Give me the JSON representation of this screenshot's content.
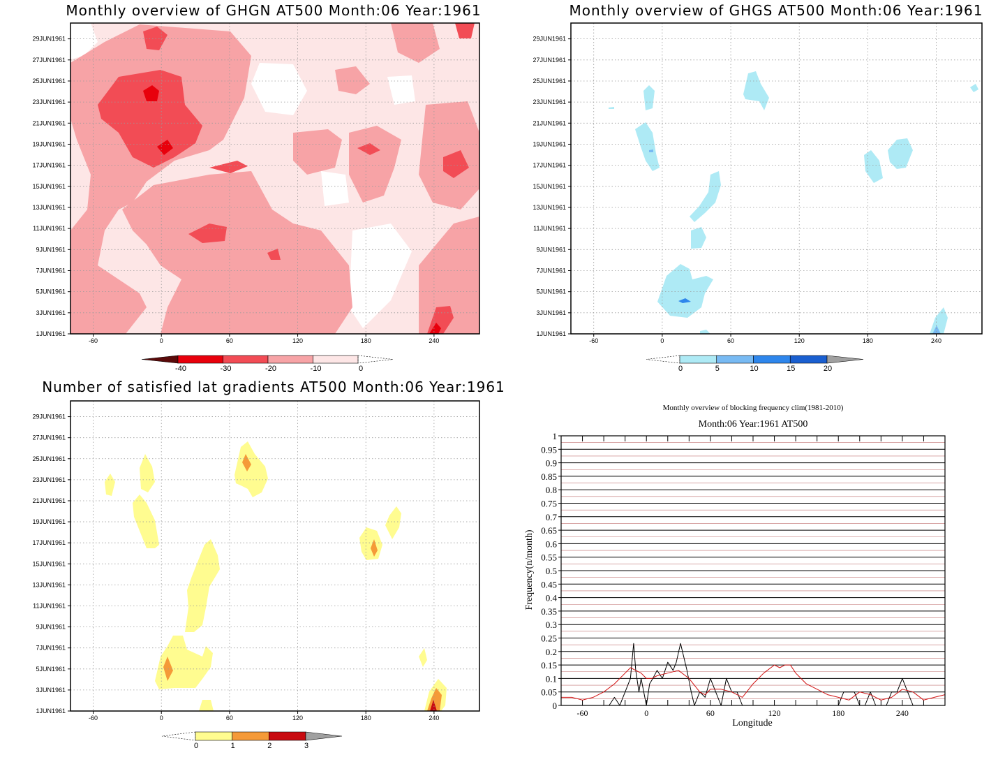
{
  "chart_data": [
    {
      "type": "heatmap",
      "title": "Monthly overview of GHGN AT500 Month:06 Year:1961",
      "x_ticks": [
        "-60",
        "0",
        "60",
        "120",
        "180",
        "240"
      ],
      "x_tick_values": [
        -60,
        0,
        60,
        120,
        180,
        240
      ],
      "xlim": [
        -80,
        280
      ],
      "y_ticks": [
        "1JUN1961",
        "3JUN1961",
        "5JUN1961",
        "7JUN1961",
        "9JUN1961",
        "11JUN1961",
        "13JUN1961",
        "15JUN1961",
        "17JUN1961",
        "19JUN1961",
        "21JUN1961",
        "23JUN1961",
        "25JUN1961",
        "27JUN1961",
        "29JUN1961"
      ],
      "grid": true,
      "colorbar": {
        "labels": [
          "-40",
          "-30",
          "-20",
          "-10",
          "0"
        ],
        "colors": [
          "#5a0a0a",
          "#e8000c",
          "#f24c55",
          "#f7a3a6",
          "#fde6e6"
        ],
        "extend": "both"
      },
      "regions": [
        {
          "level": "-20..-10",
          "color": "#f7a3a6",
          "center": [
            -30,
            17
          ],
          "extent": [
            60,
            8
          ]
        },
        {
          "level": "-30..-20",
          "color": "#f24c55",
          "center": [
            5,
            21
          ],
          "extent": [
            45,
            5
          ]
        },
        {
          "level": "-40..-30",
          "color": "#e8000c",
          "center": [
            -7,
            23
          ],
          "extent": [
            5,
            1
          ]
        },
        {
          "level": "-40..-30",
          "color": "#e8000c",
          "center": [
            0,
            18.5
          ],
          "extent": [
            8,
            1
          ]
        }
      ]
    },
    {
      "type": "heatmap",
      "title": "Monthly overview of GHGS AT500 Month:06 Year:1961",
      "x_ticks": [
        "-60",
        "0",
        "60",
        "120",
        "180",
        "240"
      ],
      "x_tick_values": [
        -60,
        0,
        60,
        120,
        180,
        240
      ],
      "xlim": [
        -80,
        280
      ],
      "y_ticks": [
        "1JUN1961",
        "3JUN1961",
        "5JUN1961",
        "7JUN1961",
        "9JUN1961",
        "11JUN1961",
        "13JUN1961",
        "15JUN1961",
        "17JUN1961",
        "19JUN1961",
        "21JUN1961",
        "23JUN1961",
        "25JUN1961",
        "27JUN1961",
        "29JUN1961"
      ],
      "grid": true,
      "colorbar": {
        "labels": [
          "0",
          "5",
          "10",
          "15",
          "20"
        ],
        "colors": [
          "#aeeaf5",
          "#78baf3",
          "#2e86ec",
          "#1a5fd0",
          "#a0a0a0"
        ],
        "extend": "both"
      },
      "regions": [
        {
          "level": "0..5",
          "color": "#aeeaf5",
          "center": [
            20,
            4.5
          ],
          "extent": [
            35,
            2
          ]
        },
        {
          "level": "0..5",
          "color": "#aeeaf5",
          "center": [
            40,
            13.5
          ],
          "extent": [
            10,
            2
          ]
        },
        {
          "level": "0..5",
          "color": "#aeeaf5",
          "center": [
            -12,
            19
          ],
          "extent": [
            8,
            2
          ]
        },
        {
          "level": "0..5",
          "color": "#aeeaf5",
          "center": [
            85,
            23.5
          ],
          "extent": [
            10,
            1.5
          ]
        },
        {
          "level": "0..5",
          "color": "#aeeaf5",
          "center": [
            200,
            17.5
          ],
          "extent": [
            25,
            1.5
          ]
        }
      ]
    },
    {
      "type": "heatmap",
      "title": "Number of satisfied lat gradients AT500 Month:06 Year:1961",
      "x_ticks": [
        "-60",
        "0",
        "60",
        "120",
        "180",
        "240"
      ],
      "x_tick_values": [
        -60,
        0,
        60,
        120,
        180,
        240
      ],
      "xlim": [
        -80,
        280
      ],
      "y_ticks": [
        "1JUN1961",
        "3JUN1961",
        "5JUN1961",
        "7JUN1961",
        "9JUN1961",
        "11JUN1961",
        "13JUN1961",
        "15JUN1961",
        "17JUN1961",
        "19JUN1961",
        "21JUN1961",
        "23JUN1961",
        "25JUN1961",
        "27JUN1961",
        "29JUN1961"
      ],
      "grid": true,
      "colorbar": {
        "labels": [
          "0",
          "1",
          "2",
          "3"
        ],
        "colors": [
          "#fffc90",
          "#f59a38",
          "#c80a10",
          "#a0a0a0"
        ],
        "extend": "both"
      },
      "regions": [
        {
          "level": "0..1",
          "color": "#fffc90",
          "center": [
            20,
            5
          ],
          "extent": [
            20,
            2
          ]
        },
        {
          "level": "0..1",
          "color": "#fffc90",
          "center": [
            40,
            13
          ],
          "extent": [
            12,
            3
          ]
        },
        {
          "level": "0..1",
          "color": "#fffc90",
          "center": [
            -12,
            20
          ],
          "extent": [
            10,
            3
          ]
        },
        {
          "level": "0..1",
          "color": "#fffc90",
          "center": [
            78,
            24
          ],
          "extent": [
            12,
            2
          ]
        },
        {
          "level": "0..1",
          "color": "#fffc90",
          "center": [
            195,
            17.5
          ],
          "extent": [
            15,
            2
          ]
        },
        {
          "level": "1..2",
          "color": "#f59a38",
          "center": [
            8,
            5
          ],
          "extent": [
            4,
            1
          ]
        },
        {
          "level": "1..2",
          "color": "#f59a38",
          "center": [
            76,
            25
          ],
          "extent": [
            3,
            0.6
          ]
        },
        {
          "level": "2..3",
          "color": "#c80a10",
          "center": [
            240,
            1.3
          ],
          "extent": [
            3,
            0.5
          ]
        }
      ]
    },
    {
      "type": "line",
      "title": "Monthly overview of blocking frequency clim(1981-2010)",
      "subtitle": "Month:06 Year:1961  AT500",
      "xlabel": "Longitude",
      "ylabel": "Frequency(n/month)",
      "x_ticks": [
        "-60",
        "0",
        "60",
        "120",
        "180",
        "240"
      ],
      "x_tick_values": [
        -60,
        0,
        60,
        120,
        180,
        240
      ],
      "xlim": [
        -80,
        280
      ],
      "ylim": [
        0,
        1
      ],
      "y_ticks": [
        "0",
        "0.05",
        "0.1",
        "0.15",
        "0.2",
        "0.25",
        "0.3",
        "0.35",
        "0.4",
        "0.45",
        "0.5",
        "0.55",
        "0.6",
        "0.65",
        "0.7",
        "0.75",
        "0.8",
        "0.85",
        "0.9",
        "0.95",
        "1"
      ],
      "grid": true,
      "series": [
        {
          "color": "#000000",
          "x": [
            -80,
            -35,
            -30,
            -25,
            -20,
            -15,
            -12,
            -10,
            -7,
            -5,
            0,
            3,
            6,
            10,
            15,
            20,
            25,
            28,
            32,
            35,
            38,
            42,
            45,
            50,
            55,
            60,
            65,
            70,
            75,
            80,
            85,
            90,
            180,
            185,
            190,
            195,
            200,
            205,
            210,
            215,
            220,
            225,
            230,
            235,
            240,
            245,
            250,
            280
          ],
          "y": [
            0,
            0,
            0.03,
            0,
            0.05,
            0.1,
            0.23,
            0.13,
            0.05,
            0.1,
            0,
            0.08,
            0.1,
            0.13,
            0.1,
            0.16,
            0.13,
            0.16,
            0.23,
            0.18,
            0.13,
            0.05,
            0,
            0.05,
            0.03,
            0.1,
            0.05,
            0,
            0.1,
            0.05,
            0.05,
            0,
            0,
            0.05,
            0.05,
            0.05,
            0,
            0,
            0.05,
            0,
            0,
            0,
            0.05,
            0.05,
            0.1,
            0.05,
            0,
            0
          ]
        },
        {
          "color": "#d01010",
          "x": [
            -80,
            -70,
            -60,
            -50,
            -40,
            -30,
            -20,
            -15,
            -10,
            -5,
            0,
            5,
            10,
            20,
            30,
            40,
            50,
            55,
            60,
            70,
            80,
            90,
            100,
            110,
            120,
            125,
            130,
            135,
            140,
            150,
            160,
            170,
            180,
            190,
            200,
            210,
            220,
            230,
            240,
            250,
            260,
            270,
            280
          ],
          "y": [
            0.03,
            0.03,
            0.02,
            0.03,
            0.05,
            0.08,
            0.12,
            0.14,
            0.13,
            0.12,
            0.1,
            0.1,
            0.11,
            0.12,
            0.13,
            0.1,
            0.05,
            0.04,
            0.06,
            0.06,
            0.05,
            0.03,
            0.08,
            0.12,
            0.15,
            0.14,
            0.15,
            0.15,
            0.12,
            0.08,
            0.06,
            0.04,
            0.03,
            0.02,
            0.05,
            0.04,
            0.02,
            0.03,
            0.06,
            0.05,
            0.02,
            0.03,
            0.04
          ]
        }
      ]
    }
  ]
}
